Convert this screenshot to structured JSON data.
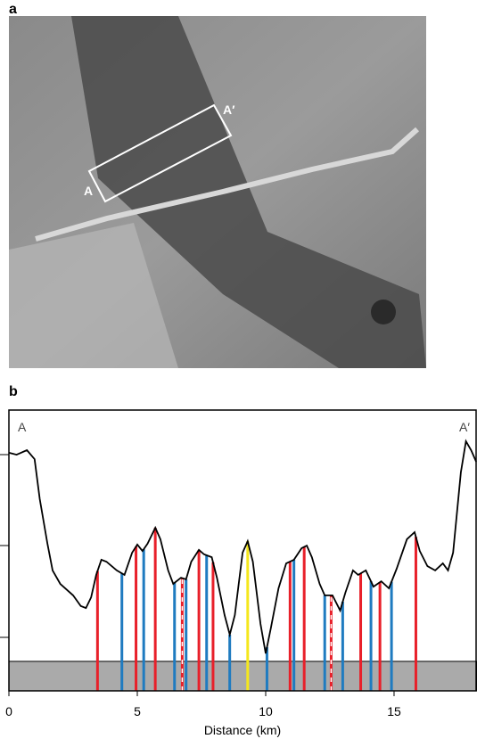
{
  "image_panel": {
    "label": "a",
    "points": [
      "A",
      "A′"
    ]
  },
  "chart_data": {
    "type": "line",
    "panel_label": "b",
    "xlabel": "Distance (km)",
    "annotations": [
      "A",
      "A′"
    ],
    "x": [
      0,
      0.3,
      0.7,
      1.0,
      1.2,
      1.5,
      1.7,
      2.0,
      2.5,
      2.8,
      3.0,
      3.2,
      3.4,
      3.6,
      3.8,
      4.2,
      4.5,
      4.8,
      5.0,
      5.2,
      5.4,
      5.7,
      5.9,
      6.2,
      6.4,
      6.7,
      6.9,
      7.1,
      7.4,
      7.6,
      7.9,
      8.1,
      8.4,
      8.6,
      8.8,
      9.1,
      9.3,
      9.5,
      9.8,
      10.0,
      10.2,
      10.5,
      10.8,
      11.1,
      11.4,
      11.6,
      11.8,
      12.1,
      12.3,
      12.6,
      12.9,
      13.1,
      13.4,
      13.6,
      13.9,
      14.2,
      14.5,
      14.8,
      15.1,
      15.5,
      15.8,
      16.0,
      16.3,
      16.6,
      16.9,
      17.1,
      17.3,
      17.6,
      17.8,
      18.0,
      18.2
    ],
    "values": [
      84.8,
      84.1,
      85.7,
      82.5,
      68.3,
      52.4,
      42.9,
      38.1,
      34.0,
      30.2,
      29.5,
      33.3,
      41.3,
      46.7,
      46.0,
      42.9,
      41.3,
      49.2,
      52.1,
      49.8,
      52.4,
      58.1,
      54.0,
      42.9,
      38.1,
      40.3,
      39.7,
      46.0,
      50.2,
      48.6,
      47.6,
      40.3,
      27.0,
      20.0,
      27.0,
      49.2,
      53.3,
      46.0,
      23.8,
      13.3,
      22.2,
      36.5,
      45.4,
      46.7,
      50.8,
      51.7,
      47.6,
      38.1,
      34.0,
      34.0,
      28.6,
      34.9,
      42.9,
      41.3,
      42.9,
      37.1,
      39.0,
      36.5,
      43.5,
      54.0,
      56.5,
      49.8,
      44.4,
      42.9,
      45.4,
      42.9,
      49.2,
      77.8,
      88.9,
      85.7,
      81.6
    ],
    "color": "#000000",
    "band": [
      0,
      10.5
    ],
    "band_color": "#aaaaaa",
    "markers": {
      "x": [
        3.45,
        4.4,
        4.95,
        5.25,
        5.7,
        6.45,
        6.75,
        6.9,
        7.4,
        7.7,
        7.95,
        8.6,
        9.3,
        10.05,
        10.95,
        11.1,
        11.5,
        12.3,
        12.55,
        13.0,
        13.7,
        14.1,
        14.45,
        14.9,
        15.85
      ],
      "colors": [
        "#e8202a",
        "#1f7bc0",
        "#e8202a",
        "#1f7bc0",
        "#e8202a",
        "#1f7bc0",
        "#e8202a",
        "#1f7bc0",
        "#e8202a",
        "#1f7bc0",
        "#e8202a",
        "#1f7bc0",
        "#f5e71c",
        "#1f7bc0",
        "#e8202a",
        "#1f7bc0",
        "#e8202a",
        "#1f7bc0",
        "#e8202a",
        "#1f7bc0",
        "#e8202a",
        "#1f7bc0",
        "#e8202a",
        "#1f7bc0",
        "#e8202a"
      ],
      "dashed": [
        false,
        false,
        false,
        false,
        false,
        false,
        true,
        false,
        false,
        false,
        false,
        false,
        false,
        false,
        false,
        false,
        false,
        false,
        true,
        false,
        false,
        false,
        false,
        false,
        false
      ]
    },
    "xlim": [
      0,
      18.23
    ],
    "ylim": [
      0,
      100
    ],
    "xticks": [
      0,
      5,
      10,
      15
    ]
  }
}
